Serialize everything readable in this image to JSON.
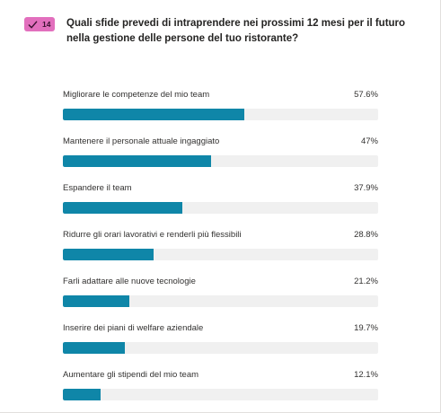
{
  "question": {
    "number": "14",
    "badge_icon": "checkmark-icon",
    "badge_color": "#e26fbd",
    "title": "Quali sfide prevedi di intraprendere nei prossimi 12 mesi per il futuro nella gestione delle persone del tuo ristorante?"
  },
  "bar_color": "#0f86a8",
  "options": [
    {
      "label": "Migliorare le competenze del mio team",
      "percent_text": "57.6%",
      "value": 57.6
    },
    {
      "label": "Mantenere il personale attuale ingaggiato",
      "percent_text": "47%",
      "value": 47
    },
    {
      "label": "Espandere il team",
      "percent_text": "37.9%",
      "value": 37.9
    },
    {
      "label": "Ridurre gli orari lavorativi e renderli più flessibili",
      "percent_text": "28.8%",
      "value": 28.8
    },
    {
      "label": "Farli adattare alle nuove tecnologie",
      "percent_text": "21.2%",
      "value": 21.2
    },
    {
      "label": "Inserire dei piani di welfare aziendale",
      "percent_text": "19.7%",
      "value": 19.7
    },
    {
      "label": "Aumentare gli stipendi del mio team",
      "percent_text": "12.1%",
      "value": 12.1
    }
  ]
}
